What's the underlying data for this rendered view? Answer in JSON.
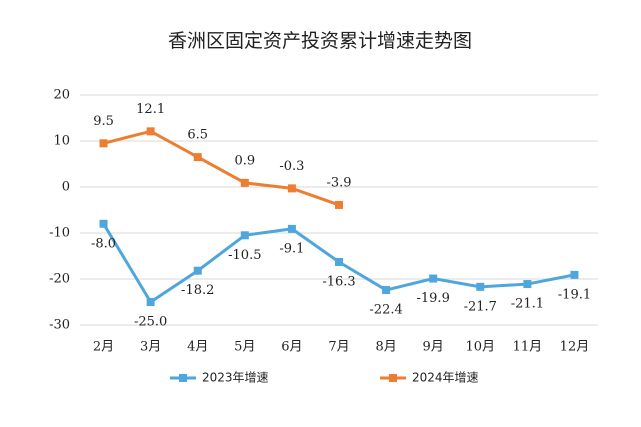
{
  "chart_data": {
    "type": "line",
    "title": "香洲区固定资产投资累计增速走势图",
    "categories": [
      "2月",
      "3月",
      "4月",
      "5月",
      "6月",
      "7月",
      "8月",
      "9月",
      "10月",
      "11月",
      "12月"
    ],
    "series": [
      {
        "name": "2023年增速",
        "color": "#4ea6dc",
        "values": [
          -8.0,
          -25.0,
          -18.2,
          -10.5,
          -9.1,
          -16.3,
          -22.4,
          -19.9,
          -21.7,
          -21.1,
          -19.1
        ],
        "value_labels": [
          "-8.0",
          "-25.0",
          "-18.2",
          "-10.5",
          "-9.1",
          "-16.3",
          "-22.4",
          "-19.9",
          "-21.7",
          "-21.1",
          "-19.1"
        ]
      },
      {
        "name": "2024年增速",
        "color": "#ed7d31",
        "values": [
          9.5,
          12.1,
          6.5,
          0.9,
          -0.3,
          -3.9,
          null,
          null,
          null,
          null,
          null
        ],
        "value_labels": [
          "9.5",
          "12.1",
          "6.5",
          "0.9",
          "-0.3",
          "-3.9",
          null,
          null,
          null,
          null,
          null
        ]
      }
    ],
    "ylim": [
      -30,
      20
    ],
    "yticks": [
      20,
      10,
      0,
      -10,
      -20,
      -30
    ],
    "grid": true,
    "legend": "bottom"
  }
}
